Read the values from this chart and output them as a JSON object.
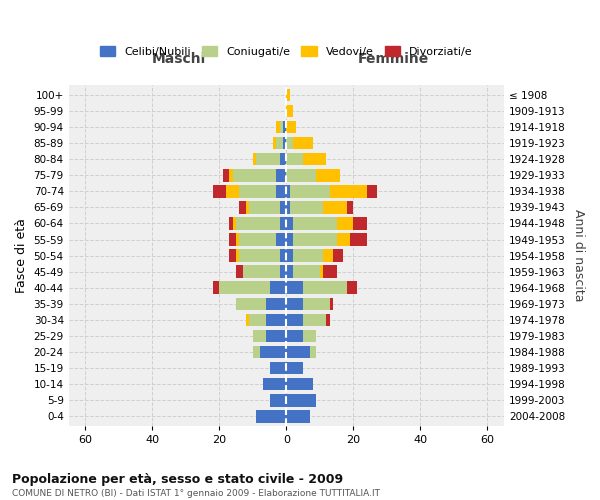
{
  "age_groups": [
    "0-4",
    "5-9",
    "10-14",
    "15-19",
    "20-24",
    "25-29",
    "30-34",
    "35-39",
    "40-44",
    "45-49",
    "50-54",
    "55-59",
    "60-64",
    "65-69",
    "70-74",
    "75-79",
    "80-84",
    "85-89",
    "90-94",
    "95-99",
    "100+"
  ],
  "birth_years": [
    "2004-2008",
    "1999-2003",
    "1994-1998",
    "1989-1993",
    "1984-1988",
    "1979-1983",
    "1974-1978",
    "1969-1973",
    "1964-1968",
    "1959-1963",
    "1954-1958",
    "1949-1953",
    "1944-1948",
    "1939-1943",
    "1934-1938",
    "1929-1933",
    "1924-1928",
    "1919-1923",
    "1914-1918",
    "1909-1913",
    "≤ 1908"
  ],
  "maschi_celibi": [
    9,
    5,
    7,
    5,
    8,
    6,
    6,
    6,
    5,
    2,
    2,
    3,
    2,
    2,
    3,
    3,
    2,
    1,
    1,
    0,
    0
  ],
  "maschi_coniugati": [
    0,
    0,
    0,
    0,
    2,
    4,
    5,
    9,
    15,
    11,
    12,
    11,
    13,
    9,
    11,
    13,
    7,
    2,
    1,
    0,
    0
  ],
  "maschi_vedovi": [
    0,
    0,
    0,
    0,
    0,
    0,
    1,
    0,
    0,
    0,
    1,
    1,
    1,
    1,
    4,
    1,
    1,
    1,
    1,
    0,
    0
  ],
  "maschi_divorziati": [
    0,
    0,
    0,
    0,
    0,
    0,
    0,
    0,
    2,
    2,
    2,
    2,
    1,
    2,
    4,
    2,
    0,
    0,
    0,
    0,
    0
  ],
  "femmine_celibi": [
    7,
    9,
    8,
    5,
    7,
    5,
    5,
    5,
    5,
    2,
    2,
    2,
    2,
    1,
    1,
    0,
    0,
    0,
    0,
    0,
    0
  ],
  "femmine_coniugati": [
    0,
    0,
    0,
    0,
    2,
    4,
    7,
    8,
    13,
    8,
    9,
    13,
    13,
    10,
    12,
    9,
    5,
    2,
    0,
    0,
    0
  ],
  "femmine_vedovi": [
    0,
    0,
    0,
    0,
    0,
    0,
    0,
    0,
    0,
    1,
    3,
    4,
    5,
    7,
    11,
    7,
    7,
    6,
    3,
    2,
    1
  ],
  "femmine_divorziati": [
    0,
    0,
    0,
    0,
    0,
    0,
    1,
    1,
    3,
    4,
    3,
    5,
    4,
    2,
    3,
    0,
    0,
    0,
    0,
    0,
    0
  ],
  "color_celibi": "#4472c4",
  "color_coniugati": "#b8d08a",
  "color_vedovi": "#ffc000",
  "color_divorziati": "#c0282d",
  "title": "Popolazione per età, sesso e stato civile - 2009",
  "subtitle": "COMUNE DI NETRO (BI) - Dati ISTAT 1° gennaio 2009 - Elaborazione TUTTITALIA.IT",
  "xlabel_left": "Maschi",
  "xlabel_right": "Femmine",
  "ylabel_left": "Fasce di età",
  "ylabel_right": "Anni di nascita",
  "xlim": 65,
  "bg_color": "#ffffff",
  "plot_bg_color": "#efefef",
  "grid_color": "#d0d0d0"
}
